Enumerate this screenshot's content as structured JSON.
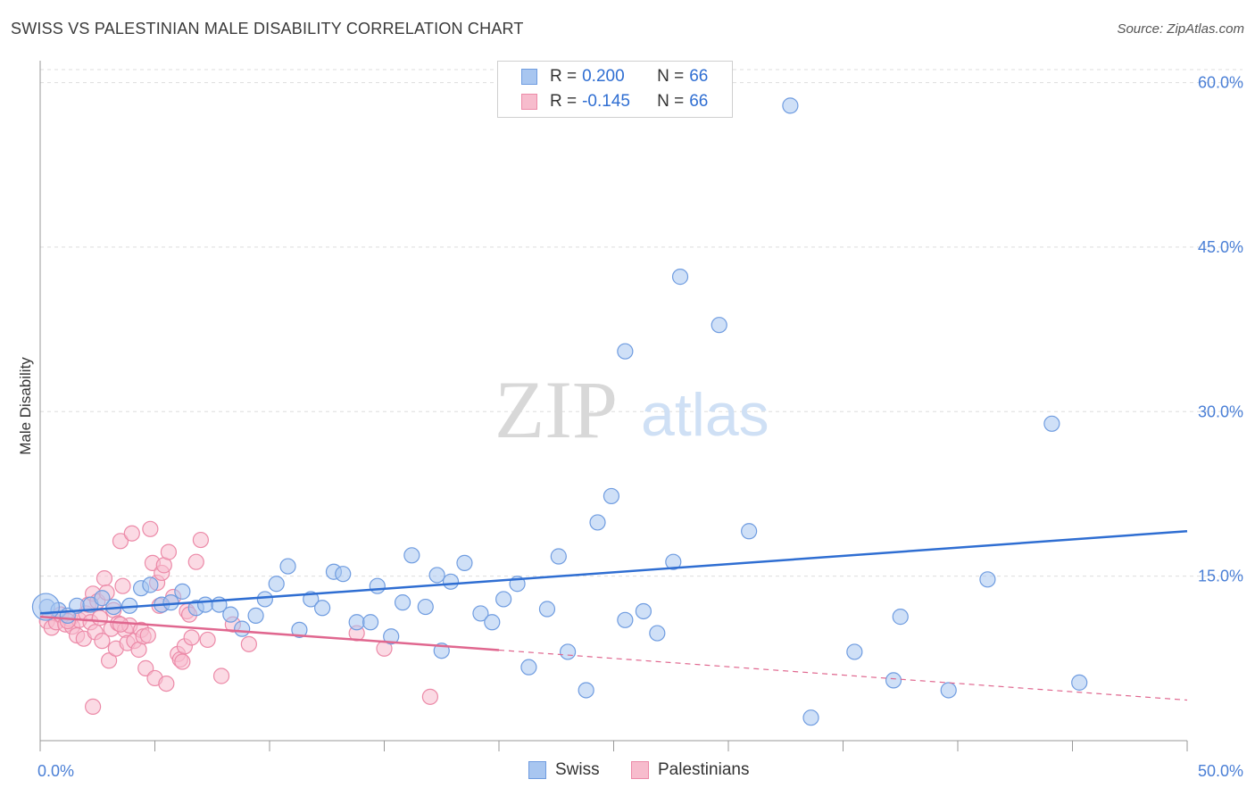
{
  "header": {
    "title": "SWISS VS PALESTINIAN MALE DISABILITY CORRELATION CHART",
    "source": "Source: ZipAtlas.com"
  },
  "legend": {
    "rows": [
      {
        "r_label": "R =",
        "r_value": "0.200",
        "n_label": "N =",
        "n_value": "66",
        "color": "#a8c6f0",
        "border": "#6f9ce0"
      },
      {
        "r_label": "R =",
        "r_value": "-0.145",
        "n_label": "N =",
        "n_value": "66",
        "color": "#f7bccd",
        "border": "#ec8aa8"
      }
    ]
  },
  "bottom_legend": [
    {
      "label": "Swiss",
      "color": "#a8c6f0",
      "border": "#6f9ce0"
    },
    {
      "label": "Palestinians",
      "color": "#f7bccd",
      "border": "#ec8aa8"
    }
  ],
  "watermark": {
    "zip": "ZIP",
    "atlas": "atlas"
  },
  "chart_data": {
    "type": "scatter",
    "title": "SWISS VS PALESTINIAN MALE DISABILITY CORRELATION CHART",
    "xlabel": "",
    "ylabel": "Male Disability",
    "xlim": [
      0,
      50
    ],
    "ylim": [
      0,
      62
    ],
    "x_tick_labels": [
      "0.0%",
      "50.0%"
    ],
    "y_ticks": [
      15,
      30,
      45,
      60
    ],
    "y_tick_labels": [
      "15.0%",
      "30.0%",
      "45.0%",
      "60.0%"
    ],
    "grid": true,
    "series": [
      {
        "name": "Swiss",
        "color": "#6f9ce0",
        "fill": "#a8c6f0",
        "trend": {
          "x": [
            0,
            50
          ],
          "y": [
            11.6,
            19.1
          ],
          "color": "#2f6ed2",
          "dashed_from": null
        },
        "points": [
          [
            0.3,
            12.2
          ],
          [
            0.8,
            11.9
          ],
          [
            1.2,
            11.4
          ],
          [
            1.6,
            12.3
          ],
          [
            2.2,
            12.4
          ],
          [
            2.7,
            13.0
          ],
          [
            3.2,
            12.2
          ],
          [
            3.9,
            12.3
          ],
          [
            4.4,
            13.9
          ],
          [
            4.8,
            14.2
          ],
          [
            5.3,
            12.4
          ],
          [
            5.7,
            12.6
          ],
          [
            6.2,
            13.6
          ],
          [
            6.8,
            12.1
          ],
          [
            7.2,
            12.4
          ],
          [
            7.8,
            12.4
          ],
          [
            8.3,
            11.5
          ],
          [
            8.8,
            10.2
          ],
          [
            9.4,
            11.4
          ],
          [
            9.8,
            12.9
          ],
          [
            10.3,
            14.3
          ],
          [
            10.8,
            15.9
          ],
          [
            11.3,
            10.1
          ],
          [
            11.8,
            12.9
          ],
          [
            12.3,
            12.1
          ],
          [
            12.8,
            15.4
          ],
          [
            13.2,
            15.2
          ],
          [
            13.8,
            10.8
          ],
          [
            14.4,
            10.8
          ],
          [
            14.7,
            14.1
          ],
          [
            15.3,
            9.5
          ],
          [
            15.8,
            12.6
          ],
          [
            16.2,
            16.9
          ],
          [
            16.8,
            12.2
          ],
          [
            17.3,
            15.1
          ],
          [
            17.5,
            8.2
          ],
          [
            17.9,
            14.5
          ],
          [
            18.5,
            16.2
          ],
          [
            19.2,
            11.6
          ],
          [
            19.7,
            10.8
          ],
          [
            20.2,
            12.9
          ],
          [
            20.8,
            14.3
          ],
          [
            21.3,
            6.7
          ],
          [
            22.1,
            12.0
          ],
          [
            22.6,
            16.8
          ],
          [
            23.0,
            8.1
          ],
          [
            23.8,
            4.6
          ],
          [
            24.3,
            19.9
          ],
          [
            24.9,
            22.3
          ],
          [
            25.5,
            35.5
          ],
          [
            25.5,
            11.0
          ],
          [
            26.3,
            11.8
          ],
          [
            26.9,
            9.8
          ],
          [
            27.6,
            16.3
          ],
          [
            27.9,
            42.3
          ],
          [
            29.6,
            37.9
          ],
          [
            30.9,
            19.1
          ],
          [
            32.7,
            57.9
          ],
          [
            33.6,
            2.1
          ],
          [
            35.5,
            8.1
          ],
          [
            37.2,
            5.5
          ],
          [
            37.5,
            11.3
          ],
          [
            39.6,
            4.6
          ],
          [
            41.3,
            14.7
          ],
          [
            44.1,
            28.9
          ],
          [
            45.3,
            5.3
          ]
        ]
      },
      {
        "name": "Palestinians",
        "color": "#ec8aa8",
        "fill": "#f7bccd",
        "trend": {
          "x": [
            0,
            50
          ],
          "y": [
            11.3,
            3.7
          ],
          "color": "#e0678f",
          "dashed_from": 20.0
        },
        "points": [
          [
            0.3,
            10.9
          ],
          [
            0.5,
            10.3
          ],
          [
            0.7,
            10.8
          ],
          [
            0.9,
            11.5
          ],
          [
            1.1,
            10.6
          ],
          [
            1.3,
            11.1
          ],
          [
            1.4,
            10.4
          ],
          [
            1.6,
            9.6
          ],
          [
            1.7,
            11.0
          ],
          [
            1.9,
            9.3
          ],
          [
            2.0,
            11.6
          ],
          [
            2.1,
            12.4
          ],
          [
            2.2,
            10.8
          ],
          [
            2.3,
            13.4
          ],
          [
            2.4,
            9.9
          ],
          [
            2.5,
            12.7
          ],
          [
            2.6,
            11.2
          ],
          [
            2.7,
            9.1
          ],
          [
            2.8,
            14.8
          ],
          [
            2.9,
            13.5
          ],
          [
            3.0,
            7.3
          ],
          [
            3.1,
            10.2
          ],
          [
            3.2,
            11.9
          ],
          [
            3.3,
            8.4
          ],
          [
            3.4,
            10.7
          ],
          [
            3.5,
            18.2
          ],
          [
            3.6,
            14.1
          ],
          [
            3.7,
            10.1
          ],
          [
            3.8,
            8.9
          ],
          [
            3.9,
            10.5
          ],
          [
            4.0,
            18.9
          ],
          [
            4.1,
            9.1
          ],
          [
            4.3,
            8.3
          ],
          [
            4.4,
            10.1
          ],
          [
            4.5,
            9.5
          ],
          [
            4.6,
            6.6
          ],
          [
            4.7,
            9.6
          ],
          [
            4.8,
            19.3
          ],
          [
            4.9,
            16.2
          ],
          [
            5.0,
            5.7
          ],
          [
            5.1,
            14.4
          ],
          [
            5.2,
            12.3
          ],
          [
            5.3,
            15.3
          ],
          [
            5.4,
            16.0
          ],
          [
            5.5,
            5.2
          ],
          [
            5.6,
            17.2
          ],
          [
            5.8,
            13.1
          ],
          [
            6.0,
            7.9
          ],
          [
            6.1,
            7.4
          ],
          [
            6.2,
            7.2
          ],
          [
            6.3,
            8.6
          ],
          [
            6.4,
            11.8
          ],
          [
            6.5,
            11.5
          ],
          [
            6.6,
            9.4
          ],
          [
            6.8,
            16.3
          ],
          [
            7.0,
            18.3
          ],
          [
            7.3,
            9.2
          ],
          [
            7.9,
            5.9
          ],
          [
            8.4,
            10.6
          ],
          [
            9.1,
            8.8
          ],
          [
            2.3,
            3.1
          ],
          [
            13.8,
            9.8
          ],
          [
            15.0,
            8.4
          ],
          [
            17.0,
            4.0
          ],
          [
            3.5,
            10.6
          ],
          [
            1.2,
            10.9
          ]
        ]
      }
    ]
  }
}
